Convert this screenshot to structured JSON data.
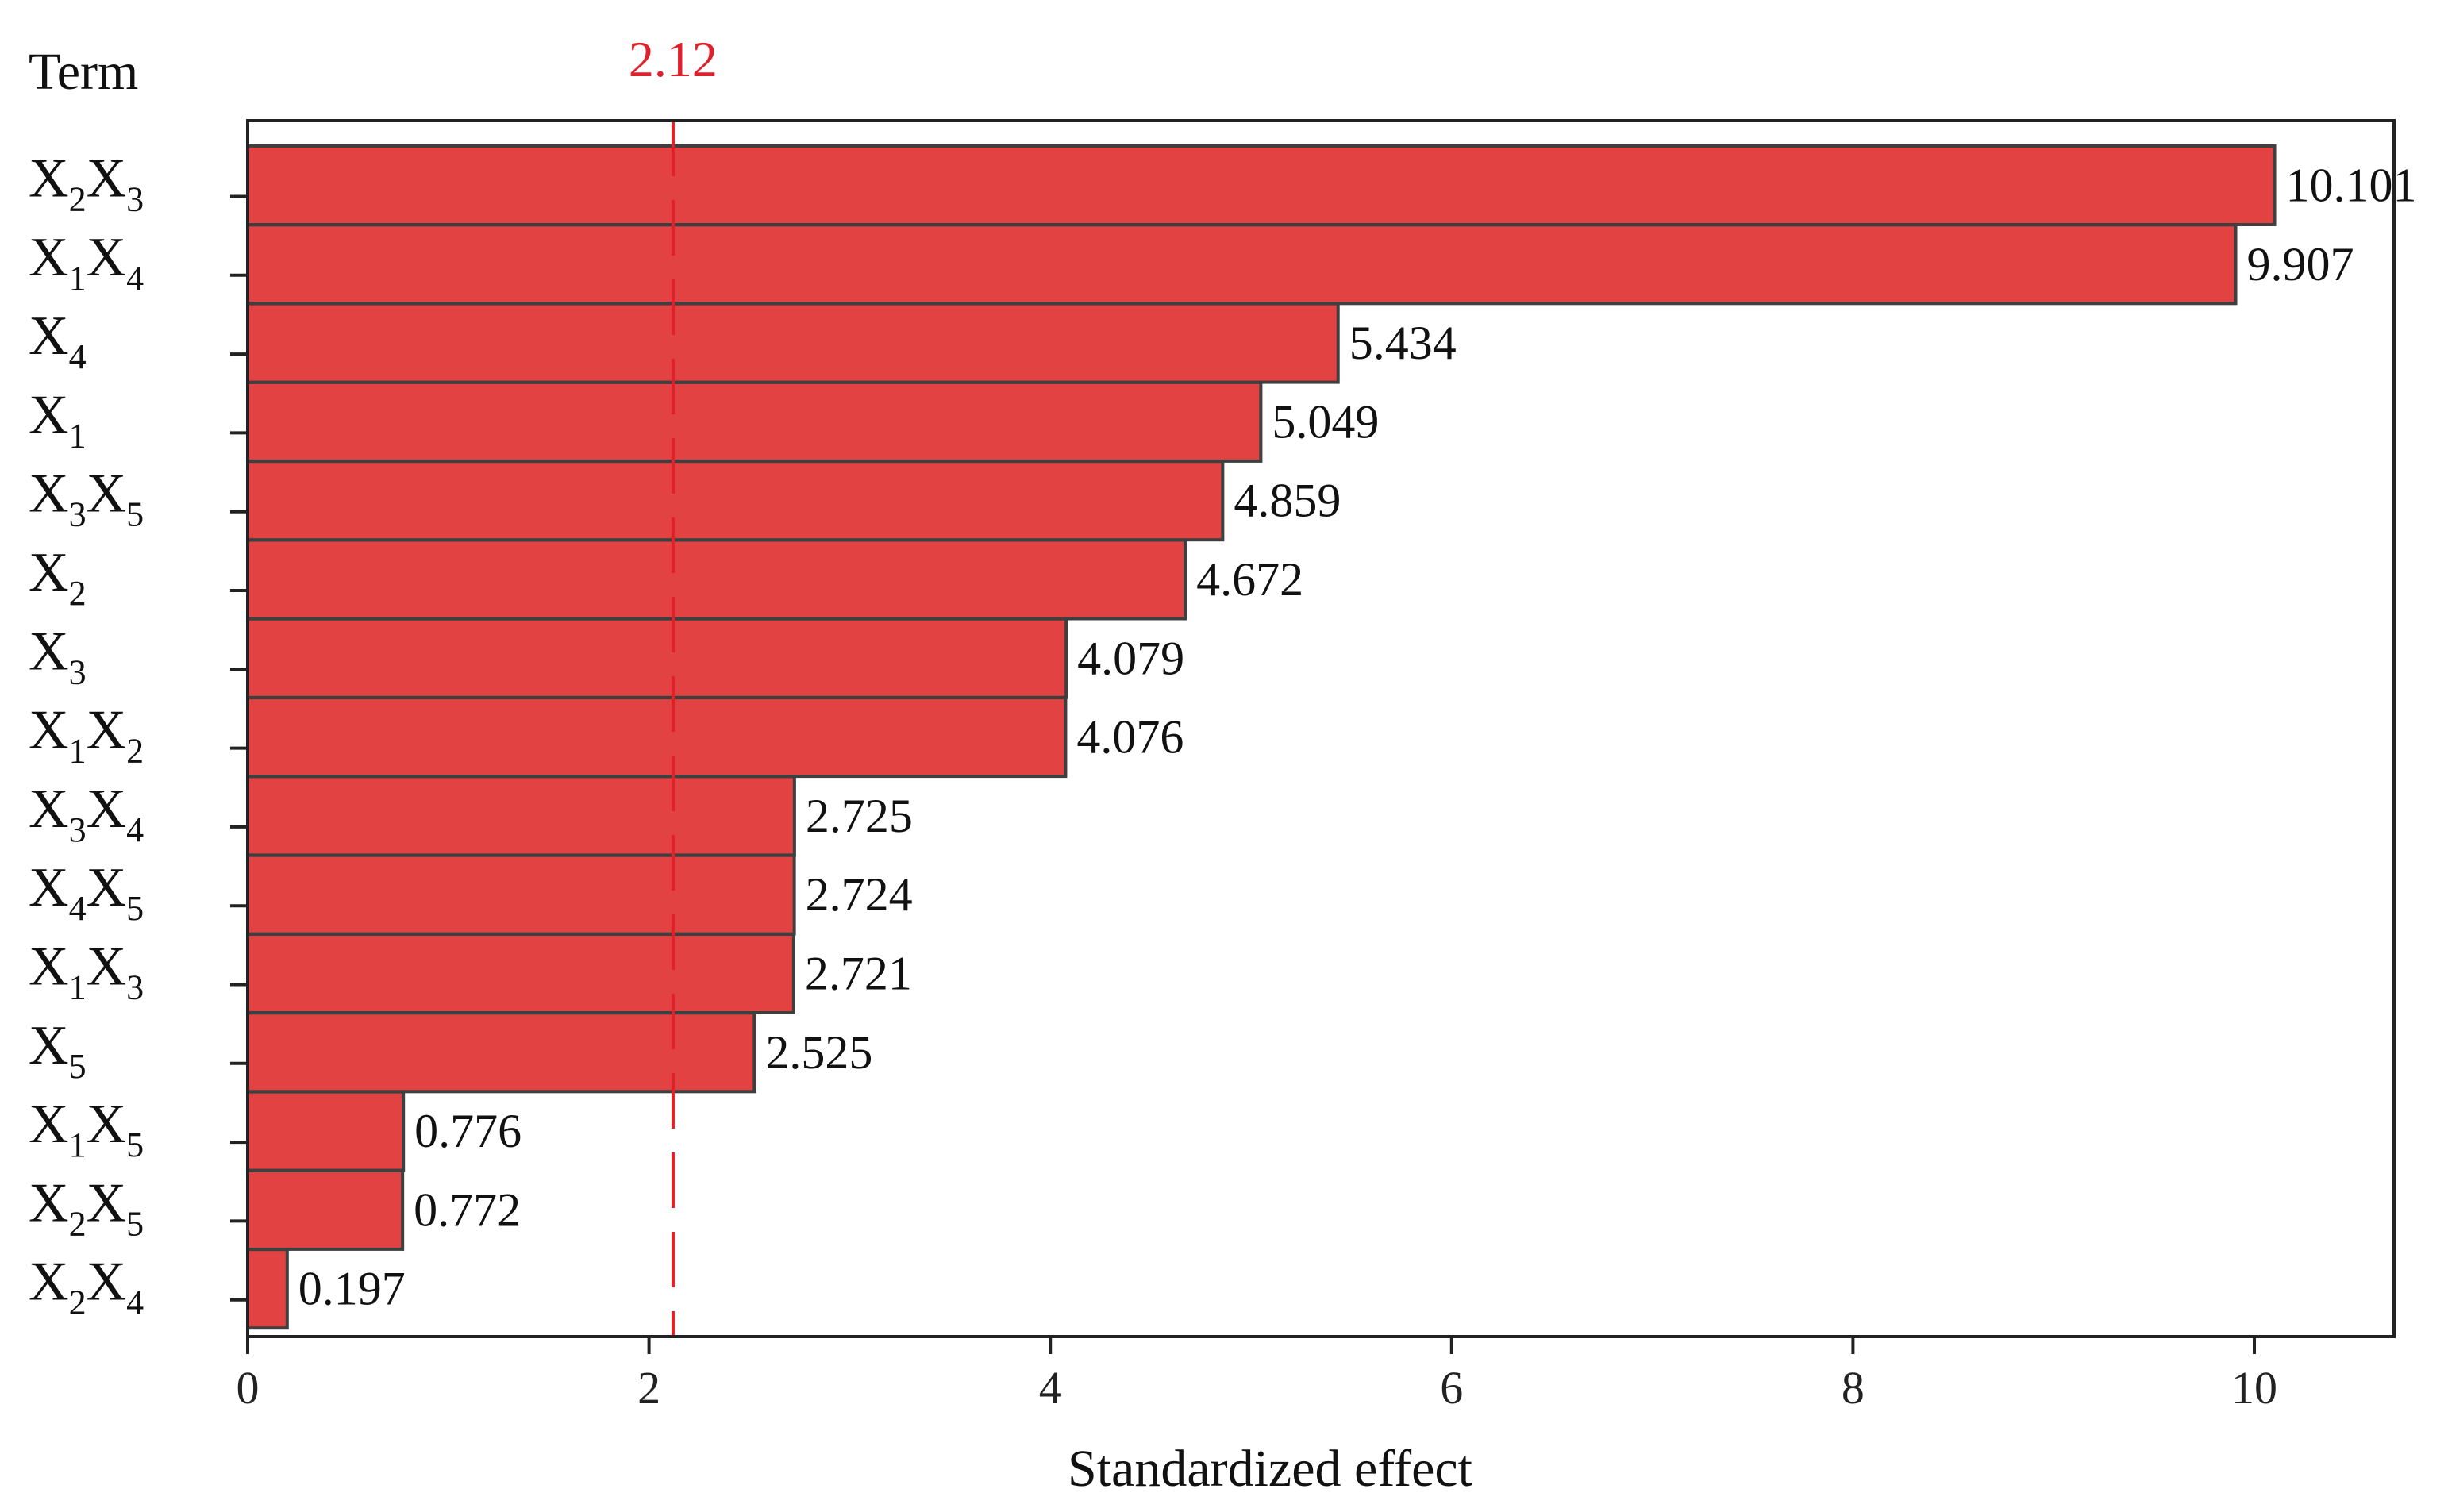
{
  "chart_data": {
    "type": "bar",
    "orientation": "horizontal",
    "yaxis_title": "Term",
    "xlabel": "Standardized effect",
    "xlim": [
      0,
      10.7
    ],
    "xticks": [
      0,
      2,
      4,
      6,
      8,
      10
    ],
    "grid": false,
    "legend": "none",
    "categories": [
      {
        "main": [
          "X",
          "X"
        ],
        "sub": [
          "2",
          "3"
        ]
      },
      {
        "main": [
          "X",
          "X"
        ],
        "sub": [
          "1",
          "4"
        ]
      },
      {
        "main": [
          "X"
        ],
        "sub": [
          "4"
        ]
      },
      {
        "main": [
          "X"
        ],
        "sub": [
          "1"
        ]
      },
      {
        "main": [
          "X",
          "X"
        ],
        "sub": [
          "3",
          "5"
        ]
      },
      {
        "main": [
          "X"
        ],
        "sub": [
          "2"
        ]
      },
      {
        "main": [
          "X"
        ],
        "sub": [
          "3"
        ]
      },
      {
        "main": [
          "X",
          "X"
        ],
        "sub": [
          "1",
          "2"
        ]
      },
      {
        "main": [
          "X",
          "X"
        ],
        "sub": [
          "3",
          "4"
        ]
      },
      {
        "main": [
          "X",
          "X"
        ],
        "sub": [
          "4",
          "5"
        ]
      },
      {
        "main": [
          "X",
          "X"
        ],
        "sub": [
          "1",
          "3"
        ]
      },
      {
        "main": [
          "X"
        ],
        "sub": [
          "5"
        ]
      },
      {
        "main": [
          "X",
          "X"
        ],
        "sub": [
          "1",
          "5"
        ]
      },
      {
        "main": [
          "X",
          "X"
        ],
        "sub": [
          "2",
          "5"
        ]
      },
      {
        "main": [
          "X",
          "X"
        ],
        "sub": [
          "2",
          "4"
        ]
      }
    ],
    "values": [
      10.101,
      9.907,
      5.434,
      5.049,
      4.859,
      4.672,
      4.079,
      4.076,
      2.725,
      2.724,
      2.721,
      2.525,
      0.776,
      0.772,
      0.197
    ],
    "value_labels": [
      "10.101",
      "9.907",
      "5.434",
      "5.049",
      "4.859",
      "4.672",
      "4.079",
      "4.076",
      "2.725",
      "2.724",
      "2.721",
      "2.525",
      "0.776",
      "0.772",
      "0.197"
    ],
    "reference_line": {
      "value": 2.12,
      "label": "2.12",
      "color": "#e0202a",
      "style": "dashed"
    },
    "colors": {
      "bar_fill": "#e34242",
      "bar_stroke": "#3f3f3f",
      "axis": "#222222"
    }
  }
}
